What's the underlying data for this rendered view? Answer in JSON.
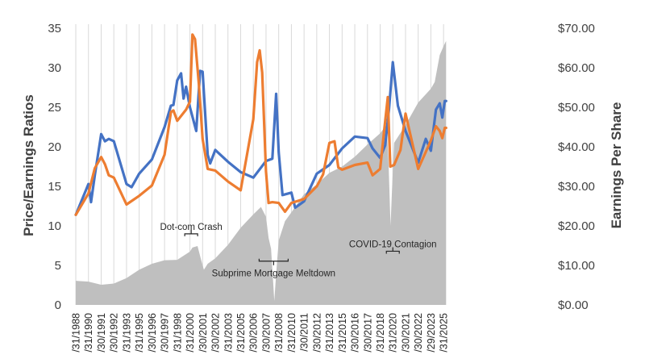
{
  "chart_data": {
    "type": "line",
    "ylabel": "Price/Earnings Ratios",
    "y2label": "Earnings Per Share",
    "ylim": [
      0,
      35
    ],
    "y2lim": [
      0,
      70
    ],
    "yticks": [
      "0",
      "5",
      "10",
      "15",
      "20",
      "25",
      "30",
      "35"
    ],
    "y2ticks": [
      "$0.00",
      "$10.00",
      "$20.00",
      "$30.00",
      "$40.00",
      "$50.00",
      "$60.00",
      "$70.00"
    ],
    "xlim": [
      1988.9,
      2025.9
    ],
    "grid": "vertical",
    "x_tick_labels": [
      {
        "x": 1988.9,
        "label": "/31/1988"
      },
      {
        "x": 1989.9,
        "label": "/31/1990"
      },
      {
        "x": 1990.9,
        "label": "/30/1991"
      },
      {
        "x": 1991.9,
        "label": "/30/1992"
      },
      {
        "x": 1992.9,
        "label": "/31/1993"
      },
      {
        "x": 1993.9,
        "label": "/31/1995"
      },
      {
        "x": 1994.9,
        "label": "/30/1996"
      },
      {
        "x": 1995.9,
        "label": "/30/1997"
      },
      {
        "x": 1996.9,
        "label": "/31/1998"
      },
      {
        "x": 1997.9,
        "label": "/31/2000"
      },
      {
        "x": 1998.9,
        "label": "/30/2001"
      },
      {
        "x": 1999.9,
        "label": "/30/2002"
      },
      {
        "x": 2000.9,
        "label": "/31/2003"
      },
      {
        "x": 2001.9,
        "label": "/31/2005"
      },
      {
        "x": 2002.9,
        "label": "/30/2006"
      },
      {
        "x": 2003.9,
        "label": "/30/2007"
      },
      {
        "x": 2004.9,
        "label": "/31/2008"
      },
      {
        "x": 2005.9,
        "label": "/31/2010"
      },
      {
        "x": 2006.9,
        "label": "/30/2011"
      },
      {
        "x": 2007.9,
        "label": "/30/2012"
      },
      {
        "x": 2008.9,
        "label": "/31/2013"
      },
      {
        "x": 2009.9,
        "label": "/31/2015"
      },
      {
        "x": 2010.9,
        "label": "/30/2016"
      },
      {
        "x": 2011.9,
        "label": "/30/2017"
      },
      {
        "x": 2012.9,
        "label": "/31/2018"
      },
      {
        "x": 2013.9,
        "label": "/31/2020"
      },
      {
        "x": 2014.9,
        "label": "/30/2021"
      },
      {
        "x": 2015.9,
        "label": "/30/2022"
      },
      {
        "x": 2016.9,
        "label": "/29/2023"
      },
      {
        "x": 2017.9,
        "label": "/31/2025"
      }
    ],
    "series": [
      {
        "type": "area",
        "axis": "right",
        "color": "#bfbfbf",
        "points": [
          [
            1988.9,
            6.1
          ],
          [
            1989.9,
            5.9
          ],
          [
            1990.9,
            5.1
          ],
          [
            1991.9,
            5.4
          ],
          [
            1992.9,
            6.8
          ],
          [
            1993.9,
            8.9
          ],
          [
            1994.9,
            10.4
          ],
          [
            1995.9,
            11.3
          ],
          [
            1996.9,
            11.4
          ],
          [
            1997.9,
            13.5
          ],
          [
            1998.1,
            14.5
          ],
          [
            1998.5,
            14.9
          ],
          [
            1998.8,
            11.2
          ],
          [
            1999.0,
            8.9
          ],
          [
            1999.3,
            10.4
          ],
          [
            1999.9,
            11.8
          ],
          [
            2000.9,
            15.2
          ],
          [
            2001.9,
            19.5
          ],
          [
            2002.9,
            22.9
          ],
          [
            2003.5,
            24.8
          ],
          [
            2003.9,
            22.3
          ],
          [
            2004.1,
            17.0
          ],
          [
            2004.3,
            14.2
          ],
          [
            2004.45,
            6.4
          ],
          [
            2004.55,
            1.0
          ],
          [
            2004.7,
            7.8
          ],
          [
            2004.9,
            16.3
          ],
          [
            2005.4,
            21.2
          ],
          [
            2005.9,
            23.4
          ],
          [
            2006.9,
            28.0
          ],
          [
            2007.9,
            30.5
          ],
          [
            2008.9,
            33.4
          ],
          [
            2009.9,
            35.0
          ],
          [
            2010.9,
            37.5
          ],
          [
            2011.9,
            40.6
          ],
          [
            2012.9,
            43.4
          ],
          [
            2013.4,
            45.6
          ],
          [
            2013.55,
            37.3
          ],
          [
            2013.72,
            20.0
          ],
          [
            2013.85,
            30.6
          ],
          [
            2014.0,
            41.0
          ],
          [
            2014.9,
            45.5
          ],
          [
            2015.9,
            51.2
          ],
          [
            2016.9,
            54.7
          ],
          [
            2017.2,
            56.4
          ],
          [
            2017.6,
            63.2
          ],
          [
            2017.9,
            65.5
          ],
          [
            2018.1,
            66.8
          ]
        ]
      },
      {
        "type": "line",
        "axis": "left",
        "color": "#4472c4",
        "points": [
          [
            1988.9,
            11.4
          ],
          [
            1989.9,
            15.3
          ],
          [
            1990.1,
            13.0
          ],
          [
            1990.4,
            16.4
          ],
          [
            1990.9,
            21.6
          ],
          [
            1991.2,
            20.7
          ],
          [
            1991.5,
            21.0
          ],
          [
            1991.9,
            20.7
          ],
          [
            1992.9,
            15.3
          ],
          [
            1993.3,
            14.9
          ],
          [
            1993.9,
            16.6
          ],
          [
            1994.9,
            18.4
          ],
          [
            1995.9,
            22.5
          ],
          [
            1996.4,
            25.2
          ],
          [
            1996.6,
            25.3
          ],
          [
            1996.9,
            28.4
          ],
          [
            1997.2,
            29.3
          ],
          [
            1997.4,
            26.1
          ],
          [
            1997.6,
            27.6
          ],
          [
            1997.9,
            25.0
          ],
          [
            1998.4,
            22.0
          ],
          [
            1998.7,
            29.6
          ],
          [
            1998.9,
            29.5
          ],
          [
            1999.3,
            19.0
          ],
          [
            1999.5,
            17.9
          ],
          [
            1999.9,
            19.6
          ],
          [
            2000.9,
            18.1
          ],
          [
            2001.9,
            16.8
          ],
          [
            2002.9,
            16.1
          ],
          [
            2003.9,
            18.2
          ],
          [
            2004.4,
            18.5
          ],
          [
            2004.7,
            26.7
          ],
          [
            2004.9,
            19.3
          ],
          [
            2005.2,
            13.9
          ],
          [
            2005.9,
            14.2
          ],
          [
            2006.2,
            12.3
          ],
          [
            2006.9,
            13.1
          ],
          [
            2007.9,
            16.6
          ],
          [
            2008.9,
            17.7
          ],
          [
            2009.9,
            19.8
          ],
          [
            2010.9,
            21.3
          ],
          [
            2011.9,
            21.1
          ],
          [
            2012.3,
            19.8
          ],
          [
            2012.9,
            18.6
          ],
          [
            2013.3,
            20.2
          ],
          [
            2013.6,
            24.8
          ],
          [
            2013.9,
            30.7
          ],
          [
            2014.3,
            25.2
          ],
          [
            2014.9,
            22.0
          ],
          [
            2015.9,
            18.0
          ],
          [
            2016.5,
            21.0
          ],
          [
            2016.9,
            19.5
          ],
          [
            2017.3,
            24.7
          ],
          [
            2017.6,
            25.5
          ],
          [
            2017.8,
            23.7
          ],
          [
            2018.0,
            25.8
          ],
          [
            2018.1,
            25.8
          ]
        ]
      },
      {
        "type": "line",
        "axis": "left",
        "color": "#ed7d31",
        "points": [
          [
            1988.9,
            11.4
          ],
          [
            1989.9,
            14.1
          ],
          [
            1990.4,
            17.3
          ],
          [
            1990.9,
            18.7
          ],
          [
            1991.2,
            17.8
          ],
          [
            1991.5,
            16.4
          ],
          [
            1991.9,
            16.1
          ],
          [
            1992.9,
            12.7
          ],
          [
            1993.9,
            13.8
          ],
          [
            1994.9,
            15.1
          ],
          [
            1995.9,
            19.0
          ],
          [
            1996.4,
            24.4
          ],
          [
            1996.6,
            24.6
          ],
          [
            1996.9,
            23.3
          ],
          [
            1997.2,
            23.9
          ],
          [
            1997.6,
            24.7
          ],
          [
            1997.9,
            25.7
          ],
          [
            1998.1,
            34.2
          ],
          [
            1998.3,
            33.6
          ],
          [
            1998.6,
            28.0
          ],
          [
            1998.9,
            21.0
          ],
          [
            1999.3,
            17.2
          ],
          [
            1999.9,
            17.0
          ],
          [
            2000.9,
            15.6
          ],
          [
            2001.9,
            14.5
          ],
          [
            2002.9,
            23.5
          ],
          [
            2003.2,
            30.7
          ],
          [
            2003.4,
            32.2
          ],
          [
            2003.6,
            29.4
          ],
          [
            2003.9,
            16.9
          ],
          [
            2004.1,
            12.9
          ],
          [
            2004.4,
            13.0
          ],
          [
            2004.9,
            12.9
          ],
          [
            2005.4,
            11.8
          ],
          [
            2005.9,
            12.9
          ],
          [
            2006.9,
            13.4
          ],
          [
            2007.9,
            15.0
          ],
          [
            2008.4,
            16.5
          ],
          [
            2008.9,
            20.5
          ],
          [
            2009.3,
            20.7
          ],
          [
            2009.6,
            17.4
          ],
          [
            2009.9,
            17.1
          ],
          [
            2010.9,
            17.7
          ],
          [
            2011.9,
            18.0
          ],
          [
            2012.3,
            16.4
          ],
          [
            2012.9,
            17.2
          ],
          [
            2013.2,
            21.8
          ],
          [
            2013.5,
            26.3
          ],
          [
            2013.7,
            17.5
          ],
          [
            2014.0,
            17.7
          ],
          [
            2014.5,
            19.6
          ],
          [
            2014.9,
            24.2
          ],
          [
            2015.9,
            17.2
          ],
          [
            2016.9,
            20.8
          ],
          [
            2017.3,
            22.6
          ],
          [
            2017.6,
            22.0
          ],
          [
            2017.8,
            21.1
          ],
          [
            2018.0,
            22.4
          ],
          [
            2018.1,
            22.4
          ]
        ]
      }
    ],
    "annotations": [
      {
        "text": "Dot-com Crash",
        "x": 1998.0,
        "y": 9.5
      },
      {
        "text": "Subprime Mortgage Meltdown",
        "x": 2004.5,
        "y": 3.6
      },
      {
        "text": "COVID-19 Contagion",
        "x": 2013.9,
        "y": 7.3
      }
    ]
  }
}
